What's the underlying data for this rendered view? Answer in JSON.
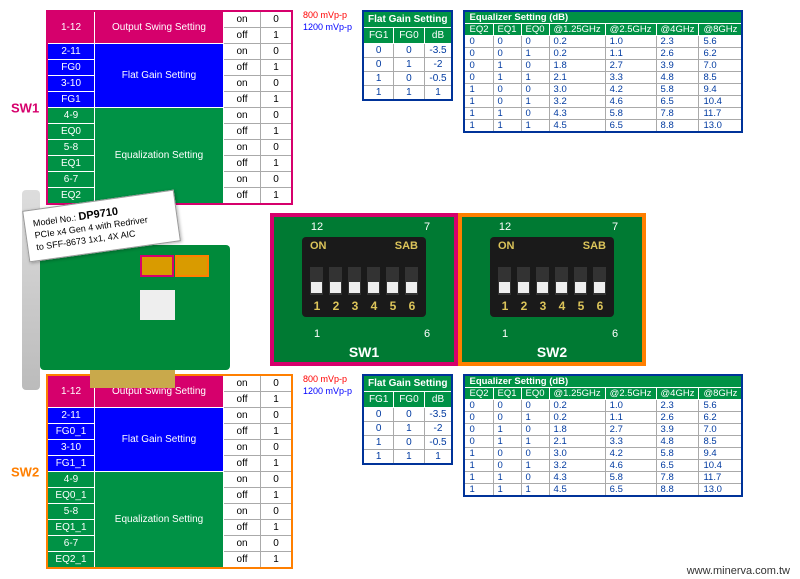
{
  "footer": "www.minerva.com.tw",
  "product": {
    "prefix": "Model No.:",
    "model": "DP9710",
    "desc1": "PCIe x4 Gen 4 with Redriver",
    "desc2": "to SFF-8673 1x1, 4X AIC"
  },
  "voltage": {
    "v800": "800 mVp-p",
    "v1200": "1200 mVp-p"
  },
  "swtables": [
    {
      "id": "SW1",
      "border": "#d6006c",
      "labelClass": "",
      "rows": [
        {
          "cls": "row-pink",
          "c1": "1-12",
          "c2": "Output Swing Setting",
          "c4a": "on",
          "c4b": "off",
          "c5a": "0",
          "c5b": "1"
        },
        {
          "cls": "row-blue",
          "c1": "2-11",
          "c2": "Flat Gain Setting",
          "rowspan": 4,
          "sub": [
            {
              "l": "FG0",
              "a": "on",
              "b": "0"
            },
            {
              "l": "",
              "a": "off",
              "b": "1"
            },
            {
              "l": "3-10",
              "a": "on",
              "b": "0"
            },
            {
              "l": "FG1",
              "a": "off",
              "b": "1"
            }
          ]
        },
        {
          "cls": "row-green",
          "c1": "4-9",
          "c2": "Equalization Setting",
          "rowspan": 6,
          "sub": [
            {
              "l": "EQ0",
              "a": "on",
              "b": "0"
            },
            {
              "l": "",
              "a": "off",
              "b": "1"
            },
            {
              "l": "5-8",
              "a": "on",
              "b": "0"
            },
            {
              "l": "EQ1",
              "a": "off",
              "b": "1"
            },
            {
              "l": "6-7",
              "a": "on",
              "b": "0"
            },
            {
              "l": "EQ2",
              "a": "off",
              "b": "1"
            }
          ]
        }
      ]
    },
    {
      "id": "SW2",
      "border": "#ff7f00",
      "labelClass": "orange",
      "rows": [
        {
          "cls": "row-pink",
          "c1": "1-12",
          "c2": "Output Swing Setting",
          "c4a": "on",
          "c4b": "off",
          "c5a": "0",
          "c5b": "1"
        },
        {
          "cls": "row-blue",
          "c1": "2-11",
          "c2": "Flat Gain Setting",
          "rowspan": 4,
          "sub": [
            {
              "l": "FG0_1",
              "a": "on",
              "b": "0"
            },
            {
              "l": "",
              "a": "off",
              "b": "1"
            },
            {
              "l": "3-10",
              "a": "on",
              "b": "0"
            },
            {
              "l": "FG1_1",
              "a": "off",
              "b": "1"
            }
          ]
        },
        {
          "cls": "row-green",
          "c1": "4-9",
          "c2": "Equalization Setting",
          "rowspan": 6,
          "sub": [
            {
              "l": "EQ0_1",
              "a": "on",
              "b": "0"
            },
            {
              "l": "",
              "a": "off",
              "b": "1"
            },
            {
              "l": "5-8",
              "a": "on",
              "b": "0"
            },
            {
              "l": "EQ1_1",
              "a": "off",
              "b": "1"
            },
            {
              "l": "6-7",
              "a": "on",
              "b": "0"
            },
            {
              "l": "EQ2_1",
              "a": "off",
              "b": "1"
            }
          ]
        }
      ]
    }
  ],
  "flatGain": {
    "title": "Flat Gain Setting",
    "headers": [
      "FG1",
      "FG0",
      "dB"
    ],
    "rows": [
      [
        "0",
        "0",
        "-3.5"
      ],
      [
        "0",
        "1",
        "-2"
      ],
      [
        "1",
        "0",
        "-0.5"
      ],
      [
        "1",
        "1",
        "1"
      ]
    ]
  },
  "equalizer": {
    "title": "Equalizer Setting (dB)",
    "headers": [
      "EQ2",
      "EQ1",
      "EQ0",
      "@1.25GHz",
      "@2.5GHz",
      "@4GHz",
      "@8GHz"
    ],
    "rows": [
      [
        "0",
        "0",
        "0",
        "0.2",
        "1.0",
        "2.3",
        "5.6"
      ],
      [
        "0",
        "0",
        "1",
        "0.2",
        "1.1",
        "2.6",
        "6.2"
      ],
      [
        "0",
        "1",
        "0",
        "1.8",
        "2.7",
        "3.9",
        "7.0"
      ],
      [
        "0",
        "1",
        "1",
        "2.1",
        "3.3",
        "4.8",
        "8.5"
      ],
      [
        "1",
        "0",
        "0",
        "3.0",
        "4.2",
        "5.8",
        "9.4"
      ],
      [
        "1",
        "0",
        "1",
        "3.2",
        "4.6",
        "6.5",
        "10.4"
      ],
      [
        "1",
        "1",
        "0",
        "4.3",
        "5.8",
        "7.8",
        "11.7"
      ],
      [
        "1",
        "1",
        "1",
        "4.5",
        "6.5",
        "8.8",
        "13.0"
      ]
    ]
  },
  "dip": {
    "top": [
      "12",
      "",
      "",
      "",
      "",
      "7"
    ],
    "bot": [
      "1",
      "",
      "",
      "",
      "",
      "6"
    ],
    "digits": [
      "1",
      "2",
      "3",
      "4",
      "5",
      "6"
    ],
    "on": "ON",
    "sab": "SAB",
    "names": [
      "SW1",
      "SW2"
    ]
  }
}
